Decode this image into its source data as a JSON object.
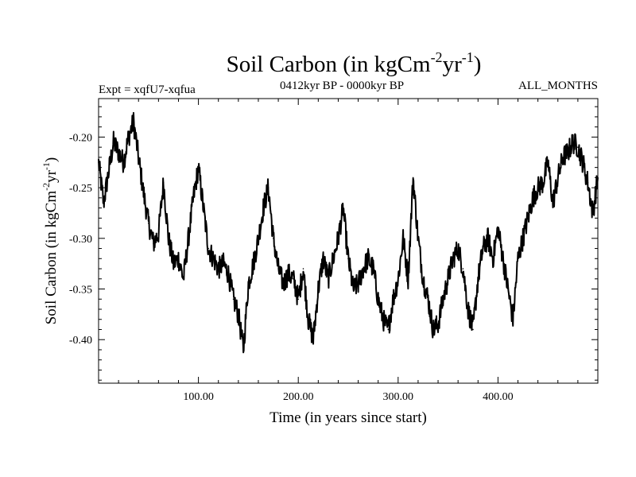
{
  "chart_data": {
    "type": "line",
    "title": {
      "main": "Soil Carbon (in kgCm",
      "sup1": "-2",
      "mid": "yr",
      "sup2": "-1",
      "end": ")"
    },
    "subtitle_left": "Expt = xqfU7-xqfua",
    "subtitle_center": "0412kyr BP - 0000kyr BP",
    "subtitle_right": "ALL_MONTHS",
    "xlabel": "Time (in years since start)",
    "ylabel": {
      "main": "Soil Carbon (in kgCm",
      "sup1": "-2",
      "mid": "yr",
      "sup2": "-1",
      "end": ")"
    },
    "xlim": [
      0,
      500
    ],
    "ylim": [
      -0.443,
      -0.162
    ],
    "grid": false,
    "x_ticks": [
      {
        "value": 100,
        "label": "100.00"
      },
      {
        "value": 200,
        "label": "200.00"
      },
      {
        "value": 300,
        "label": "300.00"
      },
      {
        "value": 400,
        "label": "400.00"
      }
    ],
    "y_ticks": [
      {
        "value": -0.2,
        "label": "-0.20"
      },
      {
        "value": -0.25,
        "label": "-0.25"
      },
      {
        "value": -0.3,
        "label": "-0.30"
      },
      {
        "value": -0.35,
        "label": "-0.35"
      },
      {
        "value": -0.4,
        "label": "-0.40"
      }
    ],
    "series": [
      {
        "name": "Soil Carbon",
        "color": "#000000",
        "x": [
          0,
          5,
          10,
          15,
          20,
          25,
          30,
          35,
          40,
          45,
          50,
          55,
          60,
          65,
          70,
          75,
          80,
          85,
          90,
          95,
          100,
          105,
          110,
          115,
          120,
          125,
          130,
          135,
          140,
          145,
          150,
          155,
          160,
          165,
          170,
          175,
          180,
          185,
          190,
          195,
          200,
          205,
          210,
          215,
          220,
          225,
          230,
          235,
          240,
          245,
          250,
          255,
          260,
          265,
          270,
          275,
          280,
          285,
          290,
          295,
          300,
          305,
          310,
          315,
          320,
          325,
          330,
          335,
          340,
          345,
          350,
          355,
          360,
          365,
          370,
          375,
          380,
          385,
          390,
          395,
          400,
          405,
          410,
          415,
          420,
          425,
          430,
          435,
          440,
          445,
          450,
          455,
          460,
          465,
          470,
          475,
          480,
          485,
          490,
          495,
          500
        ],
        "values": [
          -0.225,
          -0.265,
          -0.235,
          -0.205,
          -0.215,
          -0.225,
          -0.2,
          -0.185,
          -0.22,
          -0.255,
          -0.285,
          -0.305,
          -0.295,
          -0.245,
          -0.3,
          -0.325,
          -0.32,
          -0.34,
          -0.3,
          -0.26,
          -0.23,
          -0.27,
          -0.31,
          -0.32,
          -0.33,
          -0.325,
          -0.335,
          -0.36,
          -0.375,
          -0.41,
          -0.345,
          -0.325,
          -0.3,
          -0.27,
          -0.25,
          -0.3,
          -0.33,
          -0.345,
          -0.335,
          -0.34,
          -0.36,
          -0.33,
          -0.38,
          -0.4,
          -0.35,
          -0.32,
          -0.34,
          -0.32,
          -0.3,
          -0.27,
          -0.32,
          -0.35,
          -0.345,
          -0.33,
          -0.32,
          -0.33,
          -0.36,
          -0.38,
          -0.39,
          -0.36,
          -0.34,
          -0.3,
          -0.34,
          -0.24,
          -0.3,
          -0.34,
          -0.36,
          -0.39,
          -0.385,
          -0.36,
          -0.34,
          -0.32,
          -0.31,
          -0.33,
          -0.37,
          -0.39,
          -0.34,
          -0.31,
          -0.3,
          -0.32,
          -0.29,
          -0.32,
          -0.35,
          -0.38,
          -0.32,
          -0.3,
          -0.28,
          -0.26,
          -0.25,
          -0.245,
          -0.225,
          -0.265,
          -0.24,
          -0.22,
          -0.215,
          -0.205,
          -0.21,
          -0.225,
          -0.245,
          -0.275,
          -0.24
        ]
      }
    ]
  }
}
